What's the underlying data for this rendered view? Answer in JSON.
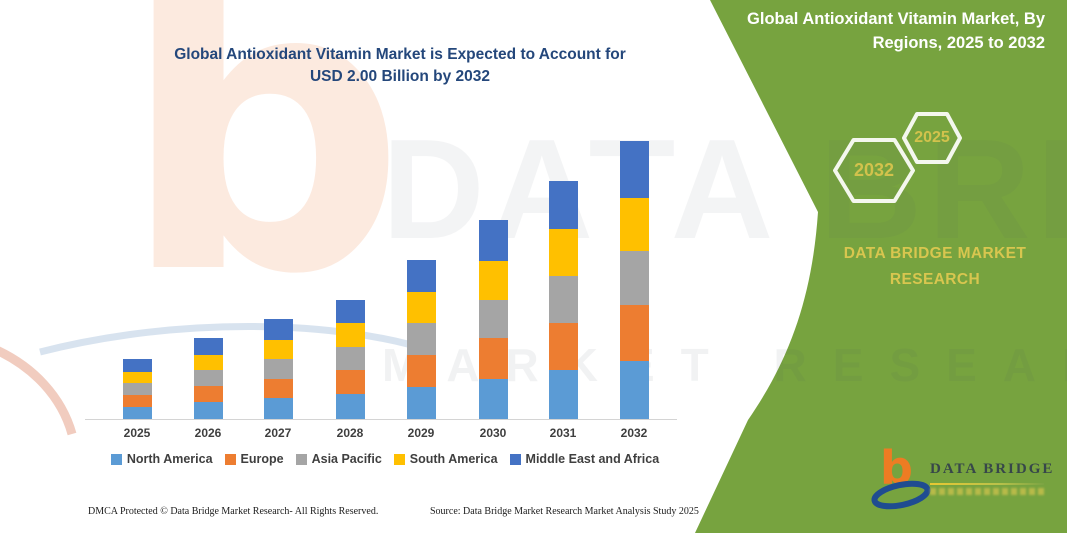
{
  "page": {
    "title_line1": "Global Antioxidant Vitamin Market is Expected to Account for",
    "title_line2": "USD 2.00 Billion by 2032"
  },
  "side_panel": {
    "heading_line1": "Global Antioxidant Vitamin Market, By",
    "heading_line2": "Regions, 2025 to 2032",
    "hexagons": [
      {
        "label": "2032"
      },
      {
        "label": "2025"
      }
    ],
    "brand_line1": "DATA BRIDGE MARKET",
    "brand_line2": "RESEARCH",
    "panel_color": "#77a33f",
    "accent_text_color": "#d2c24c",
    "logo": {
      "name": "DATA BRIDGE",
      "b_color": "#ed7c23",
      "swoosh_color": "#1f4c91"
    }
  },
  "watermark": {
    "line1": "DATA BRIDGE",
    "line2": "MARKET RESEARCH"
  },
  "footer": {
    "dmca": "DMCA Protected © Data Bridge Market Research-  All Rights Reserved.",
    "source": "Source: Data Bridge Market Research  Market Analysis Study 2025"
  },
  "chart_data": {
    "type": "bar",
    "stacked": true,
    "title": "Global Antioxidant Vitamin Market is Expected to Account for USD 2.00 Billion by 2032",
    "unit": "USD Billion",
    "categories": [
      "2025",
      "2026",
      "2027",
      "2028",
      "2029",
      "2030",
      "2031",
      "2032"
    ],
    "series": [
      {
        "name": "North America",
        "color": "#5b9bd5",
        "values": [
          0.09,
          0.12,
          0.15,
          0.18,
          0.23,
          0.29,
          0.35,
          0.42
        ]
      },
      {
        "name": "Europe",
        "color": "#ed7d31",
        "values": [
          0.08,
          0.12,
          0.14,
          0.17,
          0.23,
          0.29,
          0.34,
          0.4
        ]
      },
      {
        "name": "Asia Pacific",
        "color": "#a5a5a5",
        "values": [
          0.09,
          0.11,
          0.14,
          0.17,
          0.23,
          0.28,
          0.34,
          0.39
        ]
      },
      {
        "name": "South America",
        "color": "#ffc000",
        "values": [
          0.08,
          0.11,
          0.14,
          0.17,
          0.22,
          0.28,
          0.34,
          0.38
        ]
      },
      {
        "name": "Middle East and Africa",
        "color": "#4472c4",
        "values": [
          0.09,
          0.12,
          0.15,
          0.17,
          0.23,
          0.29,
          0.34,
          0.41
        ]
      }
    ],
    "totals": [
      0.43,
      0.58,
      0.72,
      0.86,
      1.14,
      1.43,
      1.71,
      2.0
    ],
    "ylim": [
      0,
      2.2
    ],
    "y_axis_visible": false,
    "grid": false,
    "legend_position": "bottom"
  }
}
